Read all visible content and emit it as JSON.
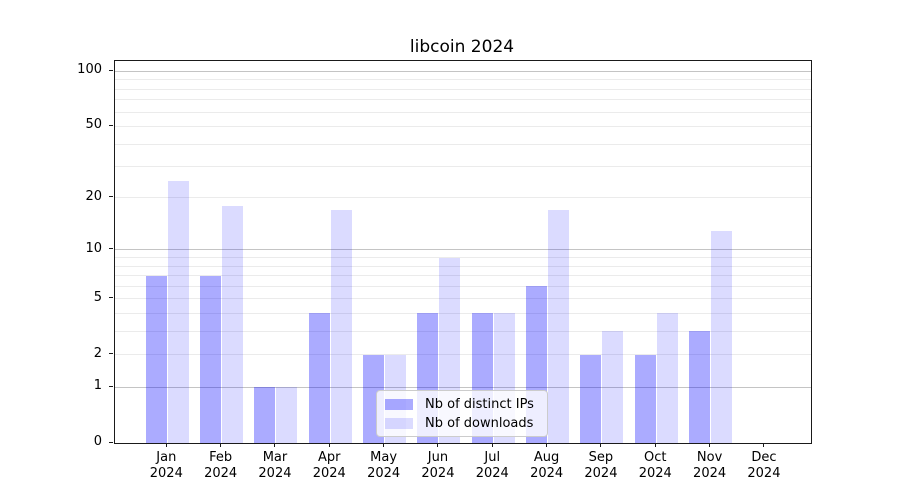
{
  "title": "libcoin 2024",
  "colors": {
    "bar_distinct_ips": "#aaaaff",
    "bar_downloads": "#ddddff",
    "bar_rgba_distinct_ips": "rgba(0,0,255,0.33)",
    "bar_rgba_downloads": "rgba(0,0,255,0.14)",
    "grid_major": "#c4c4c4",
    "grid_minor": "#ebebeb",
    "spine": "#1a1a1a"
  },
  "chart_data": {
    "type": "bar",
    "title": "libcoin 2024",
    "categories": [
      "Jan 2024",
      "Feb 2024",
      "Mar 2024",
      "Apr 2024",
      "May 2024",
      "Jun 2024",
      "Jul 2024",
      "Aug 2024",
      "Sep 2024",
      "Oct 2024",
      "Nov 2024",
      "Dec 2024"
    ],
    "series": [
      {
        "name": "Nb of distinct IPs",
        "color": "rgba(0,0,255,0.33)",
        "values": [
          7,
          7,
          1,
          4,
          2,
          4,
          4,
          6,
          2,
          2,
          3,
          0
        ]
      },
      {
        "name": "Nb of downloads",
        "color": "rgba(0,0,255,0.14)",
        "values": [
          25,
          18,
          1,
          17,
          2,
          9,
          4,
          17,
          3,
          4,
          13,
          0
        ]
      }
    ],
    "xlabel": "",
    "ylabel": "",
    "yscale": "log1p",
    "ylim": [
      0,
      110
    ],
    "yticks": [
      0,
      1,
      2,
      5,
      10,
      20,
      50,
      100
    ],
    "major_gridlines": [
      1,
      10,
      100
    ],
    "minor_gridlines": [
      2,
      3,
      4,
      5,
      6,
      7,
      8,
      9,
      20,
      30,
      40,
      50,
      60,
      70,
      80,
      90
    ],
    "grid": true,
    "legend_position": "lower center"
  }
}
